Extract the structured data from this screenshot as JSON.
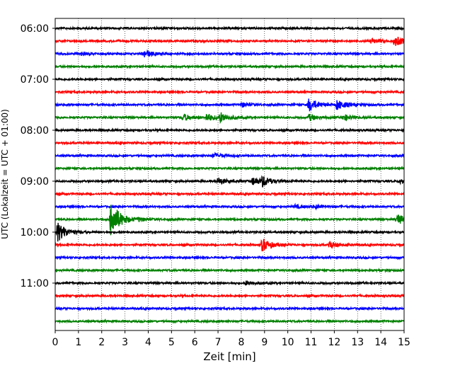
{
  "chart_data": {
    "type": "line",
    "subtype": "helicorder",
    "xlabel": "Zeit  [min]",
    "ylabel": "UTC (Lokalzeit = UTC + 01:00)",
    "xlim": [
      0,
      15
    ],
    "x_ticks": [
      "0",
      "1",
      "2",
      "3",
      "4",
      "5",
      "6",
      "7",
      "8",
      "9",
      "10",
      "11",
      "12",
      "13",
      "14",
      "15"
    ],
    "y_tick_labels": [
      "06:00",
      "07:00",
      "08:00",
      "09:00",
      "10:00",
      "11:00"
    ],
    "x_grid": "dotted vertical lines at each minute",
    "trace_interval_minutes": 15,
    "start_time": "06:00",
    "trace_count": 24,
    "colors": [
      "#000000",
      "#ff0000",
      "#0000ff",
      "#008000"
    ],
    "events": [
      {
        "trace": 1,
        "minute": 13.6,
        "amp": 0.35
      },
      {
        "trace": 1,
        "minute": 14.6,
        "amp": 0.8
      },
      {
        "trace": 2,
        "minute": 1.1,
        "amp": 0.2
      },
      {
        "trace": 2,
        "minute": 3.8,
        "amp": 0.6
      },
      {
        "trace": 6,
        "minute": 8.0,
        "amp": 0.35
      },
      {
        "trace": 6,
        "minute": 10.9,
        "amp": 1.0
      },
      {
        "trace": 6,
        "minute": 12.1,
        "amp": 0.8
      },
      {
        "trace": 7,
        "minute": 5.5,
        "amp": 0.5
      },
      {
        "trace": 7,
        "minute": 6.5,
        "amp": 0.6
      },
      {
        "trace": 7,
        "minute": 7.1,
        "amp": 0.7
      },
      {
        "trace": 7,
        "minute": 10.9,
        "amp": 0.5
      },
      {
        "trace": 7,
        "minute": 12.4,
        "amp": 0.45
      },
      {
        "trace": 10,
        "minute": 6.8,
        "amp": 0.4
      },
      {
        "trace": 12,
        "minute": 7.0,
        "amp": 0.5
      },
      {
        "trace": 12,
        "minute": 8.5,
        "amp": 0.6
      },
      {
        "trace": 12,
        "minute": 8.9,
        "amp": 0.7
      },
      {
        "trace": 12,
        "minute": 14.8,
        "amp": 0.4
      },
      {
        "trace": 14,
        "minute": 10.3,
        "amp": 0.25
      },
      {
        "trace": 14,
        "minute": 11.2,
        "amp": 0.25
      },
      {
        "trace": 15,
        "minute": 2.4,
        "amp": 3.0
      },
      {
        "trace": 15,
        "minute": 3.6,
        "amp": 0.2
      },
      {
        "trace": 15,
        "minute": 14.7,
        "amp": 0.8
      },
      {
        "trace": 16,
        "minute": 0.1,
        "amp": 1.5
      },
      {
        "trace": 17,
        "minute": 8.9,
        "amp": 1.0
      },
      {
        "trace": 17,
        "minute": 11.8,
        "amp": 0.5
      },
      {
        "trace": 20,
        "minute": 8.2,
        "amp": 0.3
      }
    ]
  }
}
